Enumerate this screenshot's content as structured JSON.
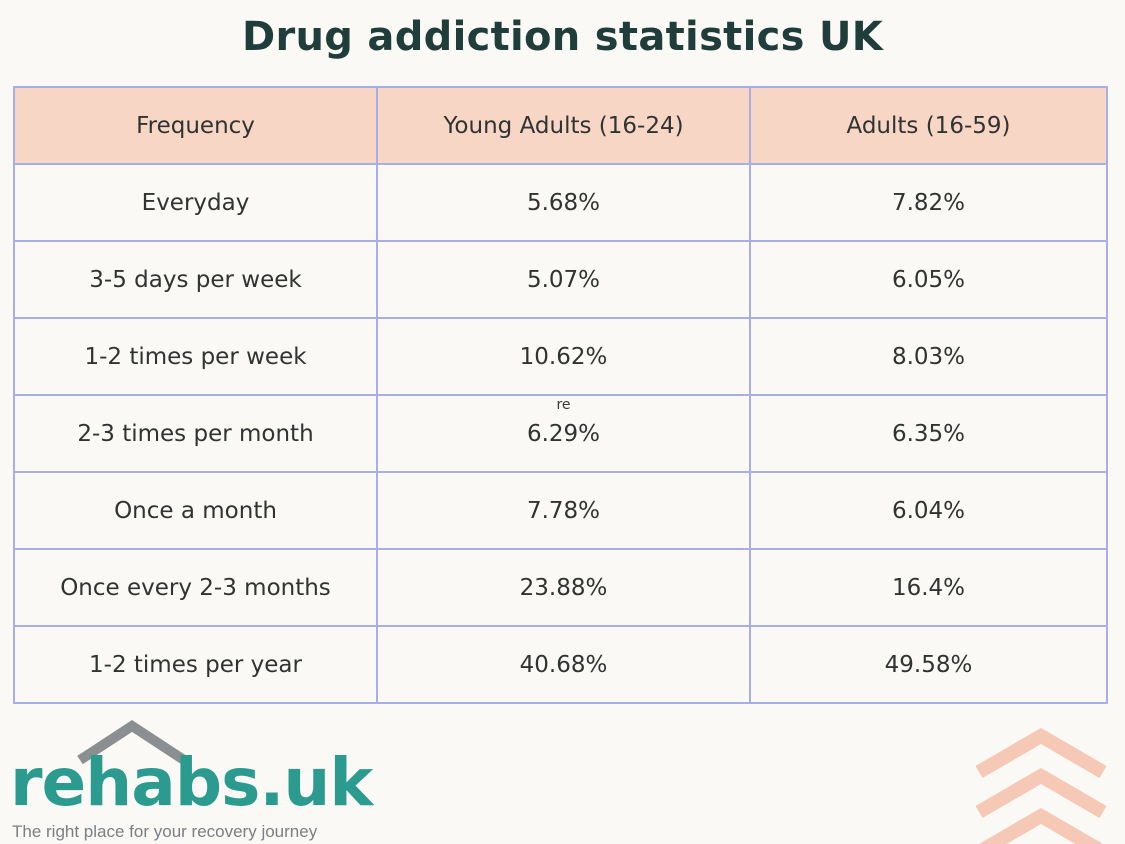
{
  "title": "Drug addiction statistics UK",
  "chart_data": {
    "type": "table",
    "columns": [
      "Frequency",
      "Young Adults (16-24)",
      "Adults (16-59)"
    ],
    "rows": [
      {
        "frequency": "Everyday",
        "young": "5.68%",
        "adults": "7.82%"
      },
      {
        "frequency": "3-5 days per week",
        "young": "5.07%",
        "adults": "6.05%"
      },
      {
        "frequency": "1-2 times per week",
        "young": "10.62%",
        "adults": "8.03%"
      },
      {
        "frequency": "2-3 times per month",
        "young": "6.29%",
        "adults": "6.35%",
        "note": "re"
      },
      {
        "frequency": "Once a month",
        "young": "7.78%",
        "adults": "6.04%"
      },
      {
        "frequency": "Once every 2-3 months",
        "young": "23.88%",
        "adults": "16.4%"
      },
      {
        "frequency": "1-2 times per year",
        "young": "40.68%",
        "adults": "49.58%"
      }
    ]
  },
  "logo": {
    "name": "rehabs.uk",
    "tagline": "The right place for your recovery journey"
  },
  "colors": {
    "title": "#1f3d3b",
    "header_bg": "#f8d6c5",
    "border": "#a9aee6",
    "logo_teal": "#2c9b8f",
    "roof_gray": "#8c8f92",
    "chevron": "#f6c9b6",
    "background": "#fbf9f6"
  }
}
